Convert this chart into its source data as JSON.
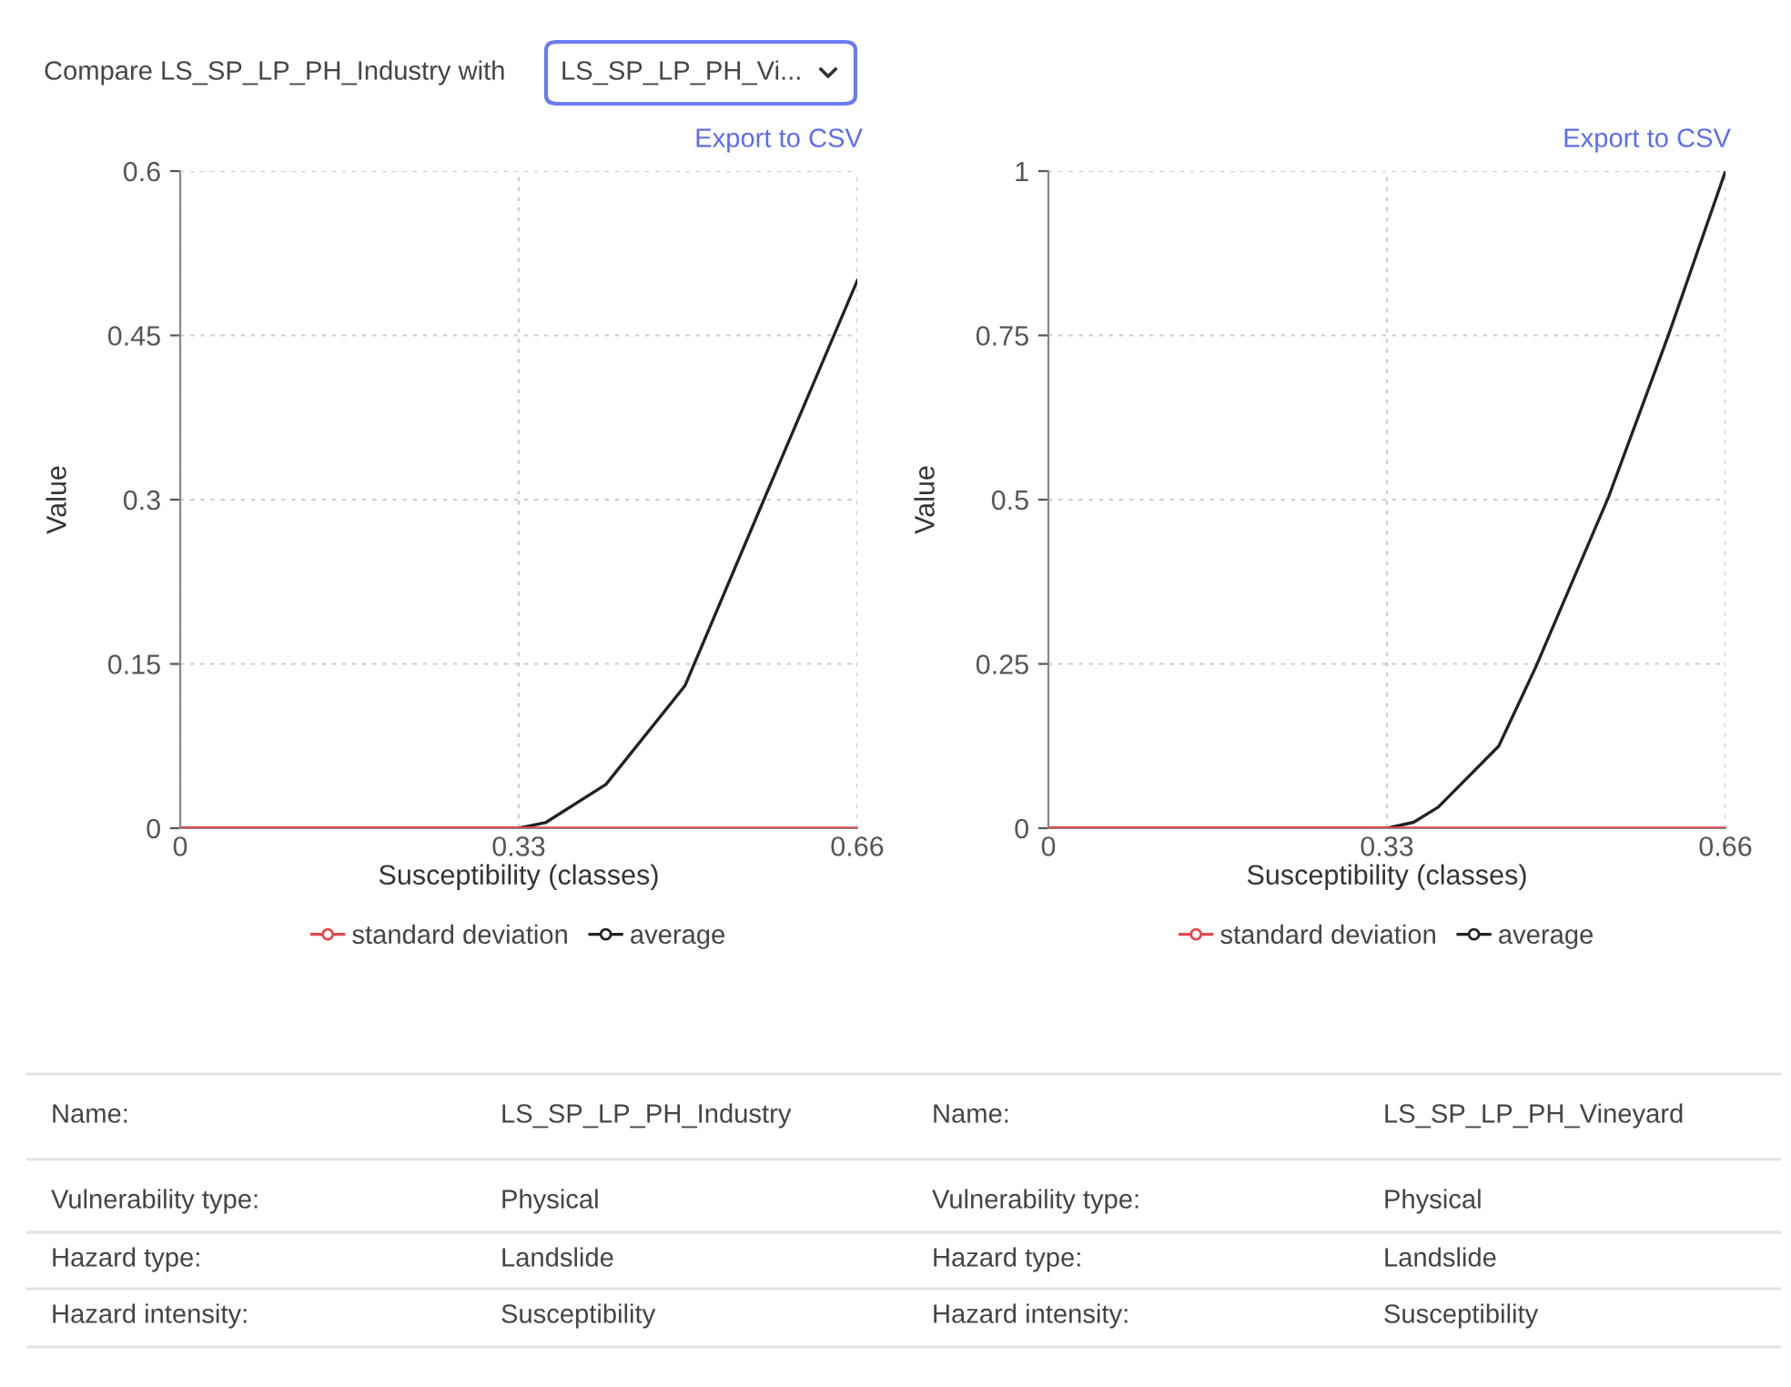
{
  "chart_data": [
    {
      "type": "line",
      "xlabel": "Susceptibility (classes)",
      "ylabel": "Value",
      "annotations": [
        "Compare LS_SP_LP_PH_Industry with",
        "LS_SP_LP_PH_Vi...",
        "Export to CSV"
      ],
      "xlim": [
        0,
        0.66
      ],
      "xticks": [
        0,
        0.33,
        0.66
      ],
      "ylim": [
        0,
        0.6
      ],
      "yticks": [
        0,
        0.15,
        0.3,
        0.45,
        0.6
      ],
      "grid": true,
      "legend": "bottom",
      "series": [
        {
          "name": "standard deviation",
          "color": "#e8474c",
          "x": [
            0,
            0.33,
            0.66
          ],
          "values": [
            0,
            0,
            0
          ]
        },
        {
          "name": "average",
          "color": "#222222",
          "x": [
            0,
            0.33,
            0.356,
            0.415,
            0.492,
            0.569,
            0.66
          ],
          "values": [
            0,
            0,
            0.005,
            0.04,
            0.13,
            0.3,
            0.5
          ]
        }
      ]
    },
    {
      "type": "line",
      "xlabel": "Susceptibility (classes)",
      "ylabel": "Value",
      "annotations": [
        "Export to CSV"
      ],
      "xlim": [
        0,
        0.66
      ],
      "xticks": [
        0,
        0.33,
        0.66
      ],
      "ylim": [
        0,
        1
      ],
      "yticks": [
        0,
        0.25,
        0.5,
        0.75,
        1
      ],
      "grid": true,
      "legend": "bottom",
      "series": [
        {
          "name": "standard deviation",
          "color": "#e8474c",
          "x": [
            0,
            0.33,
            0.66
          ],
          "values": [
            0,
            0,
            0
          ]
        },
        {
          "name": "average",
          "color": "#222222",
          "x": [
            0,
            0.33,
            0.356,
            0.38,
            0.439,
            0.475,
            0.546,
            0.605,
            0.66
          ],
          "values": [
            0,
            0,
            0.009,
            0.032,
            0.125,
            0.245,
            0.504,
            0.753,
            1
          ]
        }
      ]
    },
    {
      "type": "other",
      "annotations": [
        "Name:",
        "LS_SP_LP_PH_Industry",
        "Name:",
        "LS_SP_LP_PH_Vineyard",
        "Vulnerability type:",
        "Physical",
        "Vulnerability type:",
        "Physical",
        "Hazard type:",
        "Landslide",
        "Hazard type:",
        "Landslide",
        "Hazard intensity:",
        "Susceptibility",
        "Hazard intensity:",
        "Susceptibility"
      ]
    }
  ]
}
